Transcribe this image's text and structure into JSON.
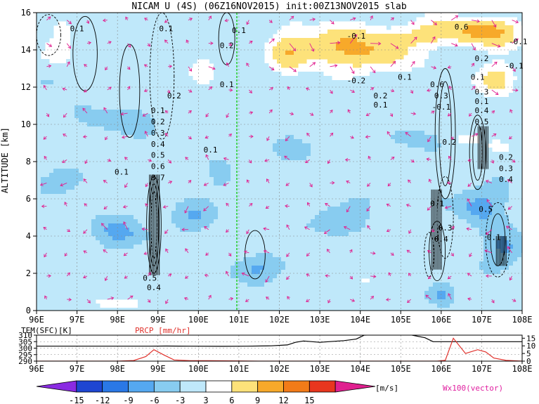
{
  "chart_data": [
    {
      "type": "heatmap",
      "title": "NICAM U (4S) (06Z16NOV2015) init:00Z13NOV2015 slab",
      "ylabel": "ALTITUDE [km]",
      "xlabel": "",
      "xlim": [
        96,
        108
      ],
      "ylim": [
        0,
        16
      ],
      "x_ticks": [
        "96E",
        "97E",
        "98E",
        "99E",
        "100E",
        "101E",
        "102E",
        "103E",
        "104E",
        "105E",
        "106E",
        "107E",
        "108E"
      ],
      "y_ticks": [
        "0",
        "2",
        "4",
        "6",
        "8",
        "10",
        "12",
        "14",
        "16"
      ],
      "grid": true,
      "marker_line_x": 100.95,
      "colorbar": {
        "levels": [
          "-15",
          "-12",
          "-9",
          "-6",
          "-3",
          "3",
          "6",
          "9",
          "12",
          "15"
        ],
        "colors": [
          "#8a2be2",
          "#1e46d2",
          "#2a78e6",
          "#55a8f0",
          "#88ccf0",
          "#bfe8fa",
          "#ffffff",
          "#fde27a",
          "#f7a92a",
          "#f27b18",
          "#e8361e",
          "#b41414"
        ],
        "units": "[m/s]"
      },
      "vector_label": "Wx100(vector)",
      "contour_labels": [
        "0.1",
        "0.2",
        "0.3",
        "0.4",
        "0.5",
        "0.6",
        "0.7",
        "-0.1",
        "-0.2"
      ],
      "vector_color": "#e0208f"
    },
    {
      "type": "line",
      "xlim": [
        96,
        108
      ],
      "x_ticks": [
        "96E",
        "97E",
        "98E",
        "99E",
        "100E",
        "101E",
        "102E",
        "103E",
        "104E",
        "105E",
        "106E",
        "107E",
        "108E"
      ],
      "y_left_ticks": [
        "290",
        "295",
        "300",
        "305",
        "310"
      ],
      "y_right_ticks": [
        "0",
        "5",
        "10",
        "15"
      ],
      "series": [
        {
          "name": "TEM(SFC)[K]",
          "color": "#000000",
          "axis": "left",
          "x": [
            96,
            97,
            98,
            98.8,
            99.2,
            99.8,
            100.6,
            101.2,
            101.8,
            102.2,
            102.4,
            102.6,
            103,
            103.6,
            103.9,
            104.1,
            104.6,
            105.2,
            105.6,
            105.8,
            106.2,
            106.5,
            108
          ],
          "y": [
            301.5,
            301.5,
            301.5,
            301.5,
            301.6,
            301.5,
            301.4,
            301.5,
            301.8,
            302.5,
            304.5,
            305.5,
            304.5,
            305.8,
            307,
            310,
            310.5,
            310.5,
            308,
            305,
            305,
            305,
            305
          ]
        },
        {
          "name": "PRCP [mm/hr]",
          "color": "#e0302a",
          "axis": "right",
          "x": [
            96,
            97,
            98,
            98.4,
            98.7,
            98.9,
            99.15,
            99.4,
            99.8,
            100.3,
            100.8,
            101.5,
            102.5,
            103.5,
            104.5,
            105.4,
            105.7,
            105.9,
            106.1,
            106.3,
            106.6,
            106.9,
            107.1,
            107.3,
            107.6,
            108
          ],
          "y": [
            0,
            0,
            0,
            0.4,
            3,
            7.5,
            4,
            0.8,
            0.3,
            0.3,
            0.2,
            0,
            0,
            0,
            0,
            0,
            0,
            0,
            0.5,
            15,
            5,
            7.5,
            6,
            2,
            0.5,
            0
          ]
        }
      ]
    }
  ]
}
